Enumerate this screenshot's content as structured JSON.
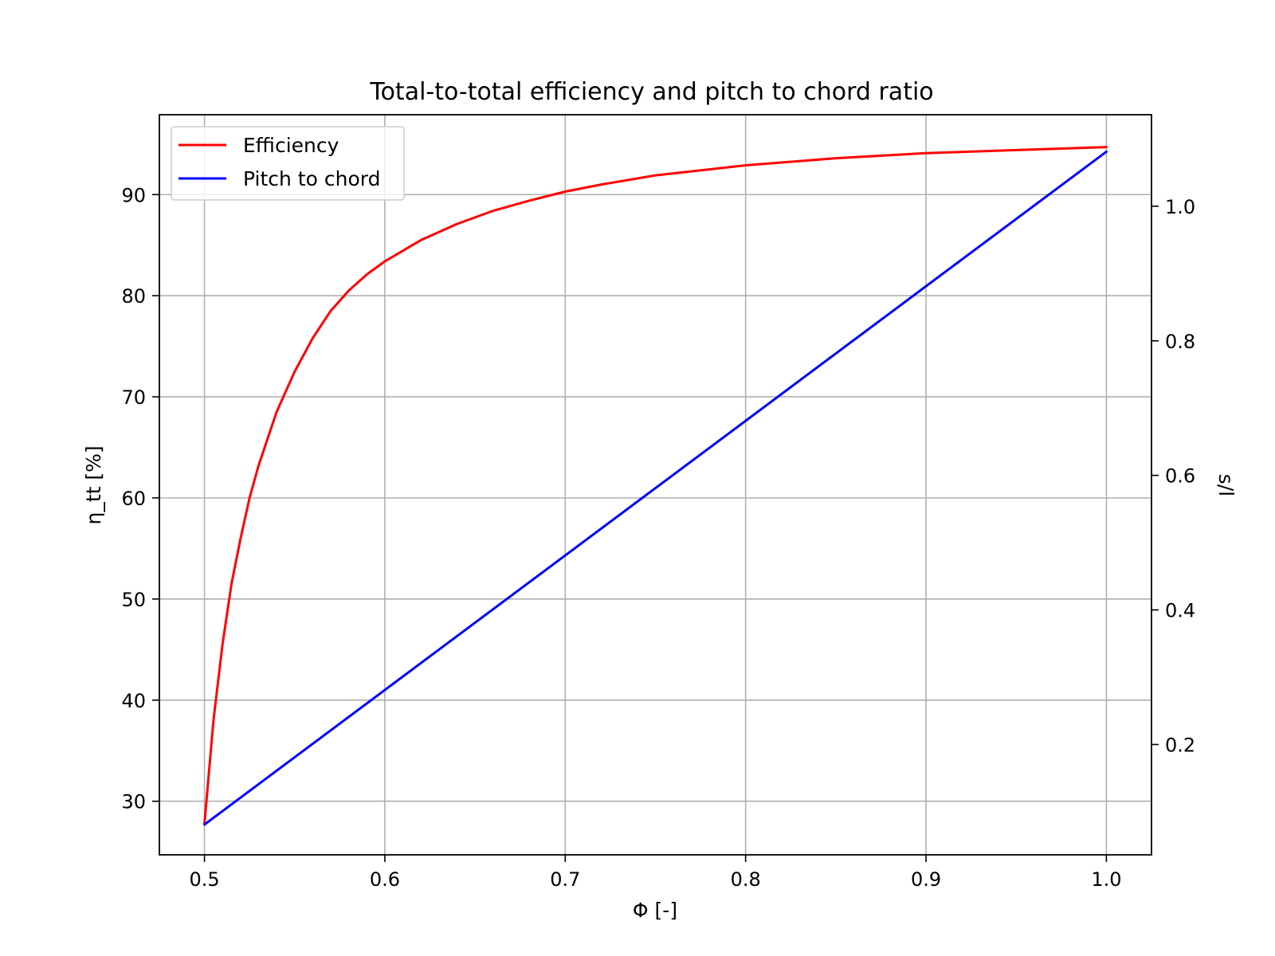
{
  "chart_data": {
    "type": "line",
    "title": "Total-to-total efficiency and pitch to chord ratio",
    "xlabel": "Φ [-]",
    "ylabel": "η_tt [%]",
    "y2label": "s/l",
    "xlim": [
      0.475,
      1.025
    ],
    "ylim": [
      24.7,
      97.9
    ],
    "y2lim": [
      0.036,
      1.136
    ],
    "x_ticks": [
      0.5,
      0.6,
      0.7,
      0.8,
      0.9,
      1.0
    ],
    "x_tick_labels": [
      "0.5",
      "0.6",
      "0.7",
      "0.8",
      "0.9",
      "1.0"
    ],
    "y_ticks": [
      30,
      40,
      50,
      60,
      70,
      80,
      90
    ],
    "y_tick_labels": [
      "30",
      "40",
      "50",
      "60",
      "70",
      "80",
      "90"
    ],
    "y2_ticks": [
      0.2,
      0.4,
      0.6,
      0.8,
      1.0
    ],
    "y2_tick_labels": [
      "0.2",
      "0.4",
      "0.6",
      "0.8",
      "1.0"
    ],
    "grid": true,
    "legend_position": "upper-left",
    "series": [
      {
        "name": "Efficiency",
        "color": "#ff0000",
        "axis": "left",
        "x": [
          0.5,
          0.505,
          0.51,
          0.515,
          0.52,
          0.525,
          0.53,
          0.54,
          0.55,
          0.56,
          0.57,
          0.58,
          0.59,
          0.6,
          0.62,
          0.64,
          0.66,
          0.68,
          0.7,
          0.72,
          0.75,
          0.8,
          0.85,
          0.9,
          0.95,
          1.0
        ],
        "values": [
          27.8,
          38.0,
          45.5,
          51.5,
          56.0,
          60.0,
          63.2,
          68.5,
          72.5,
          75.8,
          78.5,
          80.5,
          82.1,
          83.4,
          85.5,
          87.1,
          88.4,
          89.4,
          90.3,
          91.0,
          91.9,
          92.9,
          93.6,
          94.1,
          94.4,
          94.7
        ]
      },
      {
        "name": "Pitch to chord",
        "color": "#0000ff",
        "axis": "right",
        "x": [
          0.5,
          1.0
        ],
        "values": [
          0.081,
          1.081
        ]
      }
    ]
  }
}
